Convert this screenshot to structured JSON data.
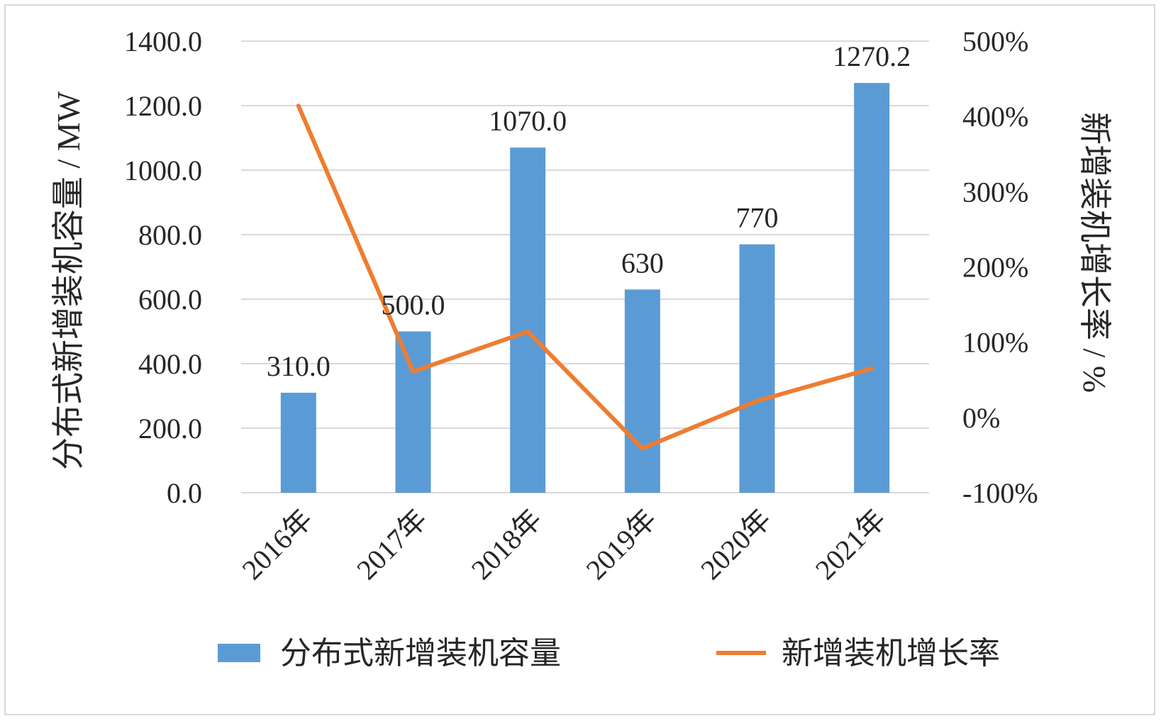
{
  "chart_data": {
    "type": "bar",
    "categories": [
      "2016年",
      "2017年",
      "2018年",
      "2019年",
      "2020年",
      "2021年"
    ],
    "series": [
      {
        "name": "分布式新增装机容量",
        "type": "bar",
        "axis": "left",
        "values": [
          310.0,
          500.0,
          1070.0,
          630,
          770,
          1270.2
        ],
        "labels": [
          "310.0",
          "500.0",
          "1070.0",
          "630",
          "770",
          "1270.2"
        ]
      },
      {
        "name": "新增装机增长率",
        "type": "line",
        "axis": "right",
        "values": [
          414,
          61,
          114,
          -41,
          22,
          65
        ]
      }
    ],
    "ylabel": "分布式新增装机容量 / MW",
    "y2label": "新增装机增长率 / %",
    "ylim": [
      0,
      1400
    ],
    "y2lim": [
      -100,
      500
    ],
    "yticks": [
      "0.0",
      "200.0",
      "400.0",
      "600.0",
      "800.0",
      "1000.0",
      "1200.0",
      "1400.0"
    ],
    "y2ticks": [
      "-100%",
      "0%",
      "100%",
      "200%",
      "300%",
      "400%",
      "500%"
    ],
    "grid": true,
    "legend_position": "bottom",
    "colors": {
      "bar": "#5b9bd5",
      "line": "#ed7d31",
      "grid": "#d9d9d9",
      "text": "#262626"
    }
  }
}
